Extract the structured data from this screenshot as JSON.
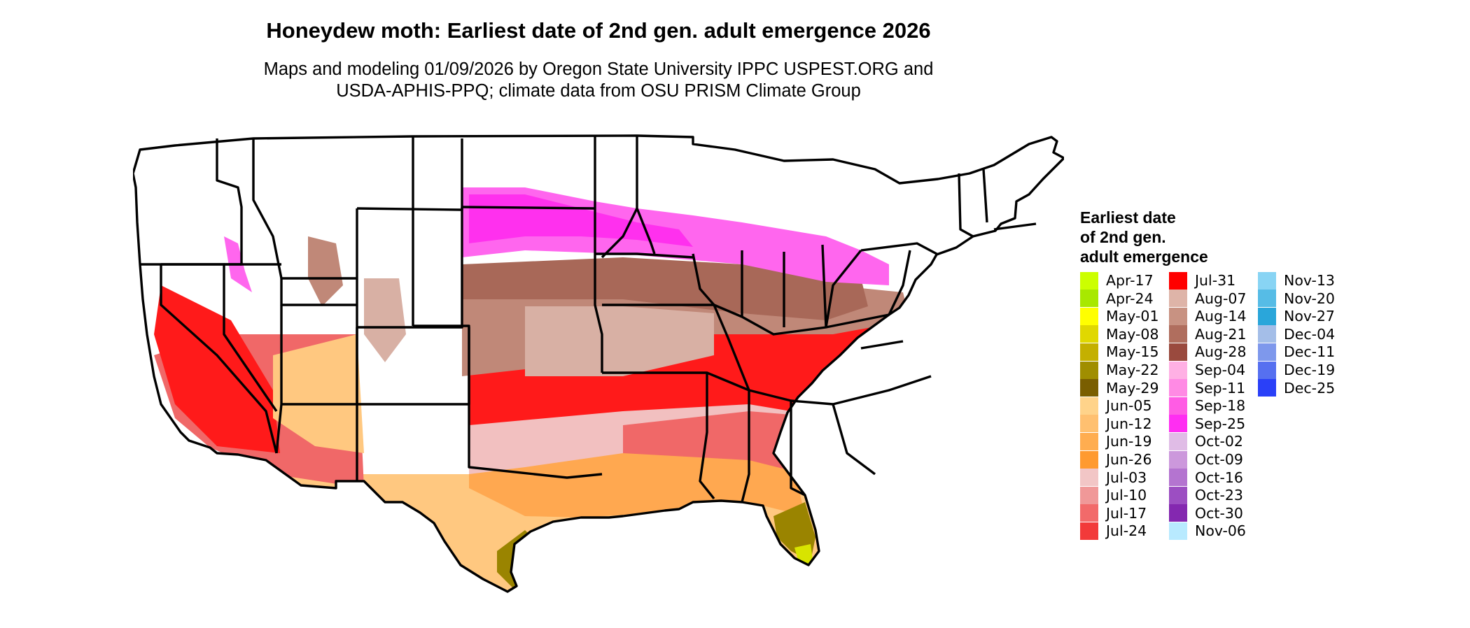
{
  "title": "Honeydew moth: Earliest date of 2nd gen. adult emergence 2026",
  "subtitle": [
    "Maps and modeling 01/09/2026 by Oregon State University IPPC USPEST.ORG and",
    "USDA-APHIS-PPQ; climate data from OSU PRISM Climate Group"
  ],
  "legend": {
    "title": [
      "Earliest date",
      "of 2nd gen.",
      "adult emergence"
    ],
    "columns": [
      [
        {
          "label": "Apr-17",
          "color": "#ccff00"
        },
        {
          "label": "Apr-24",
          "color": "#a8e800"
        },
        {
          "label": "May-01",
          "color": "#ffff00"
        },
        {
          "label": "May-08",
          "color": "#e0d800"
        },
        {
          "label": "May-15",
          "color": "#c4b000"
        },
        {
          "label": "May-22",
          "color": "#a08e00"
        },
        {
          "label": "May-29",
          "color": "#7a5e00"
        },
        {
          "label": "Jun-05",
          "color": "#ffd38a"
        },
        {
          "label": "Jun-12",
          "color": "#ffc070"
        },
        {
          "label": "Jun-19",
          "color": "#ffad50"
        },
        {
          "label": "Jun-26",
          "color": "#ff9a30"
        },
        {
          "label": "Jul-03",
          "color": "#f2c6c6"
        },
        {
          "label": "Jul-10",
          "color": "#f09898"
        },
        {
          "label": "Jul-17",
          "color": "#f26a6a"
        },
        {
          "label": "Jul-24",
          "color": "#f23a3a"
        }
      ],
      [
        {
          "label": "Jul-31",
          "color": "#ff0000"
        },
        {
          "label": "Aug-07",
          "color": "#deb4a8"
        },
        {
          "label": "Aug-14",
          "color": "#c89282"
        },
        {
          "label": "Aug-21",
          "color": "#b06e5e"
        },
        {
          "label": "Aug-28",
          "color": "#9a4a3e"
        },
        {
          "label": "Sep-04",
          "color": "#ffb0e4"
        },
        {
          "label": "Sep-11",
          "color": "#ff8ae4"
        },
        {
          "label": "Sep-18",
          "color": "#ff5ce4"
        },
        {
          "label": "Sep-25",
          "color": "#ff2ef2"
        },
        {
          "label": "Oct-02",
          "color": "#e0bce6"
        },
        {
          "label": "Oct-09",
          "color": "#cc98dc"
        },
        {
          "label": "Oct-16",
          "color": "#b474d0"
        },
        {
          "label": "Oct-23",
          "color": "#9c4ec2"
        },
        {
          "label": "Oct-30",
          "color": "#8428b0"
        },
        {
          "label": "Nov-06",
          "color": "#b8eaff"
        }
      ],
      [
        {
          "label": "Nov-13",
          "color": "#88d4f4"
        },
        {
          "label": "Nov-20",
          "color": "#56bce6"
        },
        {
          "label": "Nov-27",
          "color": "#2aa6da"
        },
        {
          "label": "Dec-04",
          "color": "#a4bee8"
        },
        {
          "label": "Dec-11",
          "color": "#7e98ec"
        },
        {
          "label": "Dec-19",
          "color": "#5670f0"
        },
        {
          "label": "Dec-25",
          "color": "#2a40f8"
        }
      ]
    ]
  },
  "map_palette": {
    "white": "#ffffff",
    "pink": "#ff66ee",
    "magenta": "#ff30ee",
    "brown_light": "#d8b0a4",
    "brown_mid": "#c08878",
    "brown_dark": "#a86858",
    "salmon": "#f2c0c0",
    "red_light": "#f06868",
    "red": "#ff1a1a",
    "orange": "#ffa850",
    "peach": "#ffc880",
    "olive": "#9a8400",
    "olive_dark": "#6e5600",
    "yellow": "#d8e400",
    "border": "#000000"
  }
}
